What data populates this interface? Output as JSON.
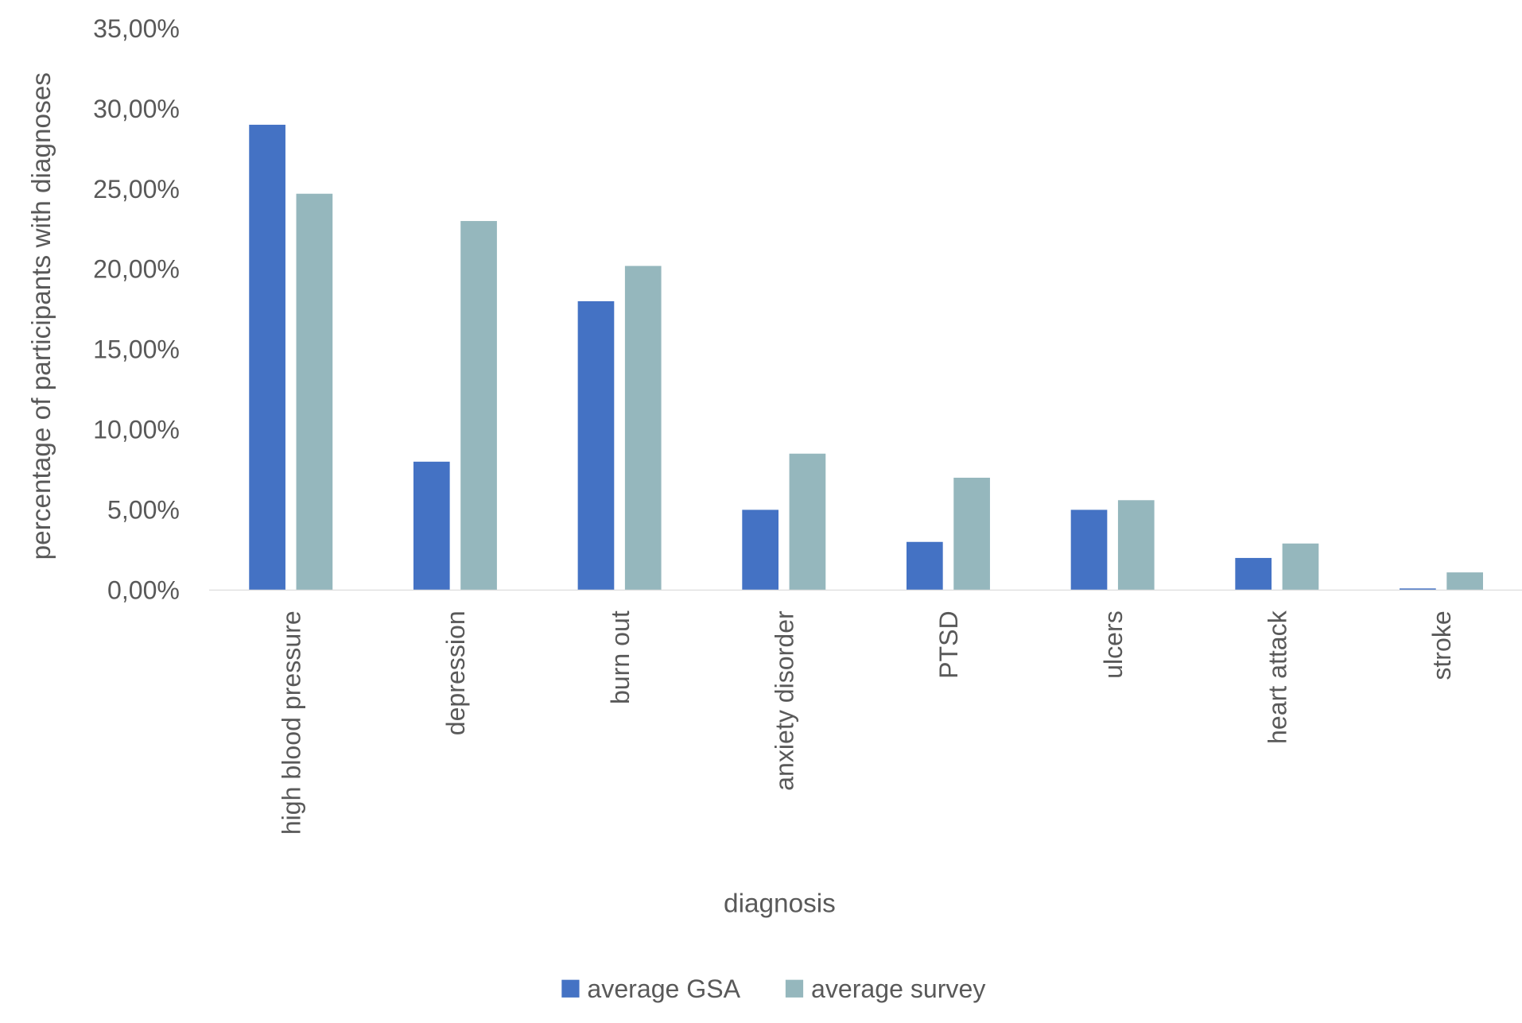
{
  "chart_data": {
    "type": "bar",
    "title": "",
    "xlabel": "diagnosis",
    "ylabel": "percentage of participants with diagnoses",
    "ylim": [
      0,
      35
    ],
    "yticks": [
      0,
      5,
      10,
      15,
      20,
      25,
      30,
      35
    ],
    "ytick_labels": [
      "0,00%",
      "5,00%",
      "10,00%",
      "15,00%",
      "20,00%",
      "25,00%",
      "30,00%",
      "35,00%"
    ],
    "grid": false,
    "legend_position": "bottom",
    "categories": [
      "high blood pressure",
      "depression",
      "burn out",
      "anxiety disorder",
      "PTSD",
      "ulcers",
      "heart attack",
      "stroke"
    ],
    "series": [
      {
        "name": "average GSA",
        "color": "#4472C4",
        "values": [
          29.0,
          8.0,
          18.0,
          5.0,
          3.0,
          5.0,
          2.0,
          0.1
        ]
      },
      {
        "name": "average survey",
        "color": "#95B7BD",
        "values": [
          24.7,
          23.0,
          20.2,
          8.5,
          7.0,
          5.6,
          2.9,
          1.1
        ]
      }
    ]
  }
}
